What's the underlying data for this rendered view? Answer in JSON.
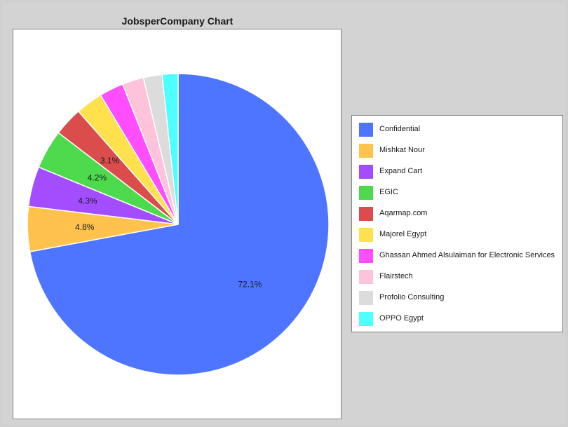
{
  "chart_data": {
    "type": "pie",
    "title": "JobsperCompany Chart",
    "start_angle_deg": 90,
    "direction": "clockwise",
    "legend_position": "right",
    "slices": [
      {
        "label": "Confidential",
        "percent": 72.1,
        "percent_label": "72.1%",
        "color": "#4d75ff"
      },
      {
        "label": "Mishkat Nour",
        "percent": 4.8,
        "percent_label": "4.8%",
        "color": "#ffc34d"
      },
      {
        "label": "Expand Cart",
        "percent": 4.3,
        "percent_label": "4.3%",
        "color": "#a44dff"
      },
      {
        "label": "EGIC",
        "percent": 4.2,
        "percent_label": "4.2%",
        "color": "#4ddb4d"
      },
      {
        "label": "Aqarmap.com",
        "percent": 3.1,
        "percent_label": "3.1%",
        "color": "#db4d4d"
      },
      {
        "label": "Majorel Egypt",
        "percent": 2.9,
        "percent_label": "",
        "color": "#ffe14d"
      },
      {
        "label": "Ghassan Ahmed Alsulaiman for Electronic Services",
        "percent": 2.6,
        "percent_label": "",
        "color": "#ff4dff"
      },
      {
        "label": "Flairstech",
        "percent": 2.3,
        "percent_label": "",
        "color": "#ffc2db"
      },
      {
        "label": "Profolio Consulting",
        "percent": 2.0,
        "percent_label": "",
        "color": "#dcdcdc"
      },
      {
        "label": "OPPO Egypt",
        "percent": 1.7,
        "percent_label": "",
        "color": "#4dffff"
      }
    ]
  }
}
